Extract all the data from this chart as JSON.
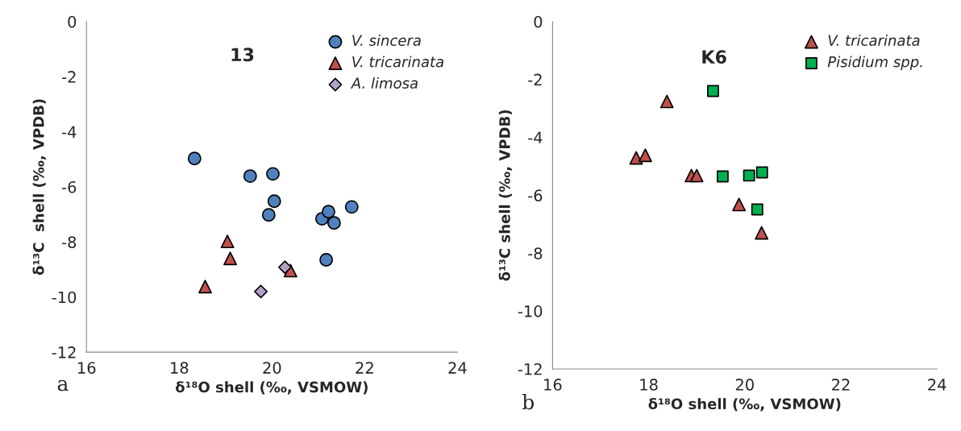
{
  "chart_data": [
    {
      "type": "scatter",
      "title": "13",
      "xlabel": "δ¹⁸O shell (‰, VSMOW)",
      "ylabel": "δ¹³C  shell (‰, VPDB)",
      "xlim": [
        16,
        24
      ],
      "xticks": [
        16,
        18,
        20,
        22,
        24
      ],
      "ylim": [
        -12,
        0
      ],
      "yticks": [
        -12,
        -10,
        -8,
        -6,
        -4,
        -2,
        0
      ],
      "grid": false,
      "legend": "top right",
      "annotations": [
        "a"
      ],
      "series": [
        {
          "name": "V. sincera",
          "color": "#4f81bd",
          "marker": "circle",
          "x": [
            18.33,
            19.53,
            20.02,
            20.05,
            19.93,
            21.08,
            21.22,
            21.34,
            21.72,
            21.17
          ],
          "values": [
            -4.97,
            -5.61,
            -5.53,
            -6.52,
            -7.02,
            -7.16,
            -6.9,
            -7.31,
            -6.73,
            -8.65
          ]
        },
        {
          "name": "V. tricarinata",
          "color": "#c0504d",
          "marker": "triangle",
          "x": [
            19.04,
            19.1,
            18.56,
            20.4
          ],
          "values": [
            -7.98,
            -8.6,
            -9.62,
            -9.04
          ]
        },
        {
          "name": "A. limosa",
          "color": "#b3a2c7",
          "marker": "diamond",
          "x": [
            20.28,
            19.76
          ],
          "values": [
            -8.92,
            -9.8
          ]
        }
      ]
    },
    {
      "type": "scatter",
      "title": "K6",
      "xlabel": "δ¹⁸O shell (‰, VSMOW)",
      "ylabel": "δ¹³C shell (‰, VPDB)",
      "xlim": [
        16,
        24
      ],
      "xticks": [
        16,
        18,
        20,
        22,
        24
      ],
      "ylim": [
        -12,
        0
      ],
      "yticks": [
        -12,
        -10,
        -8,
        -6,
        -4,
        -2,
        0
      ],
      "grid": false,
      "legend": "top right",
      "annotations": [
        "b"
      ],
      "series": [
        {
          "name": "V. tricarinata",
          "color": "#c0504d",
          "marker": "triangle",
          "x": [
            18.38,
            17.74,
            17.93,
            18.89,
            19.0,
            19.88,
            20.35
          ],
          "values": [
            -2.76,
            -4.71,
            -4.62,
            -5.32,
            -5.32,
            -6.32,
            -7.3
          ]
        },
        {
          "name": "Pisidium spp.",
          "color": "#00b050",
          "marker": "square",
          "x": [
            19.34,
            19.54,
            20.09,
            20.36,
            20.26
          ],
          "values": [
            -2.4,
            -5.35,
            -5.32,
            -5.21,
            -6.49
          ]
        }
      ]
    }
  ]
}
